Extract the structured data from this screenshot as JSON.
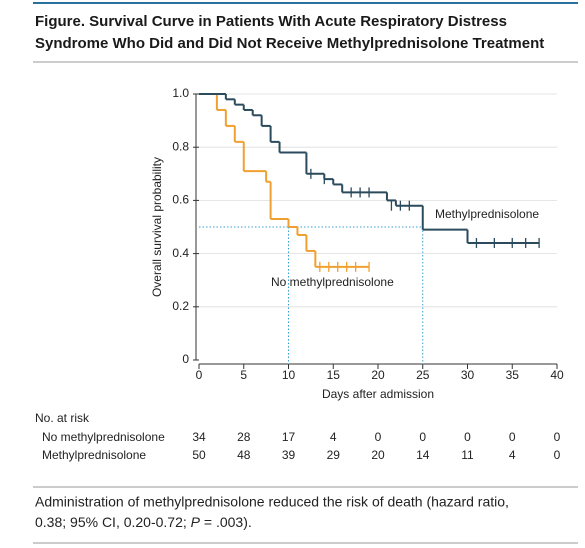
{
  "chart_data": {
    "type": "survival",
    "title_lines": [
      "Figure. Survival Curve in Patients With Acute Respiratory Distress",
      "Syndrome Who Did and Did Not Receive Methylprednisolone Treatment"
    ],
    "x_label": "Days after admission",
    "y_label": "Overall survival probability",
    "xlim": [
      0,
      40
    ],
    "ylim": [
      0,
      1
    ],
    "xticks": [
      0,
      5,
      10,
      15,
      20,
      25,
      30,
      35,
      40
    ],
    "yticks": [
      0,
      {
        "value": 0.2,
        "label": "0.2"
      },
      {
        "value": 0.4,
        "label": "0.4"
      },
      {
        "value": 0.6,
        "label": "0.6"
      },
      {
        "value": 0.8,
        "label": "0.8"
      },
      {
        "value": 1,
        "label": "1.0"
      }
    ],
    "grid": true,
    "median_y": 0.5,
    "median_x": [
      10,
      25
    ],
    "series": [
      {
        "name": "No methylprednisolone",
        "color": "#f0a030",
        "x": [
          0,
          2,
          3,
          4,
          5,
          7.5,
          8,
          10,
          11,
          12,
          13
        ],
        "values": [
          1.0,
          0.94,
          0.88,
          0.82,
          0.71,
          0.67,
          0.53,
          0.5,
          0.47,
          0.41,
          0.35
        ],
        "censored_x": [
          13.5,
          14.5,
          15.5,
          16.5,
          17.5,
          19
        ],
        "censored_values": [
          0.35,
          0.35,
          0.35,
          0.35,
          0.35,
          0.35
        ]
      },
      {
        "name": "Methylprednisolone",
        "color": "#2b4a5c",
        "x": [
          0,
          3,
          4,
          5,
          6,
          7,
          8,
          9,
          12,
          14,
          15,
          16,
          21,
          22,
          25,
          30
        ],
        "values": [
          1.0,
          0.98,
          0.96,
          0.94,
          0.92,
          0.88,
          0.82,
          0.78,
          0.7,
          0.68,
          0.66,
          0.63,
          0.6,
          0.58,
          0.49,
          0.44
        ],
        "censored_x": [
          12.5,
          14,
          17,
          18,
          19,
          21.5,
          22.5,
          23.5,
          31,
          33,
          35,
          36.5,
          38
        ],
        "censored_values": [
          0.7,
          0.68,
          0.63,
          0.63,
          0.63,
          0.58,
          0.58,
          0.58,
          0.44,
          0.44,
          0.44,
          0.44,
          0.44
        ]
      }
    ],
    "risk_table": {
      "title": "No. at risk",
      "rows": [
        {
          "label": "No methylprednisolone",
          "values": [
            34,
            28,
            17,
            4,
            0,
            0,
            0,
            0,
            0
          ]
        },
        {
          "label": "Methylprednisolone",
          "values": [
            50,
            48,
            39,
            29,
            20,
            14,
            11,
            4,
            0
          ]
        }
      ]
    },
    "caption": {
      "line1": "Administration of methylprednisolone reduced the risk of death (hazard ratio,",
      "line2_before": "0.38; 95% CI, 0.20-0.72; ",
      "line2_italic": "P",
      "line2_after": " = .003)."
    }
  }
}
